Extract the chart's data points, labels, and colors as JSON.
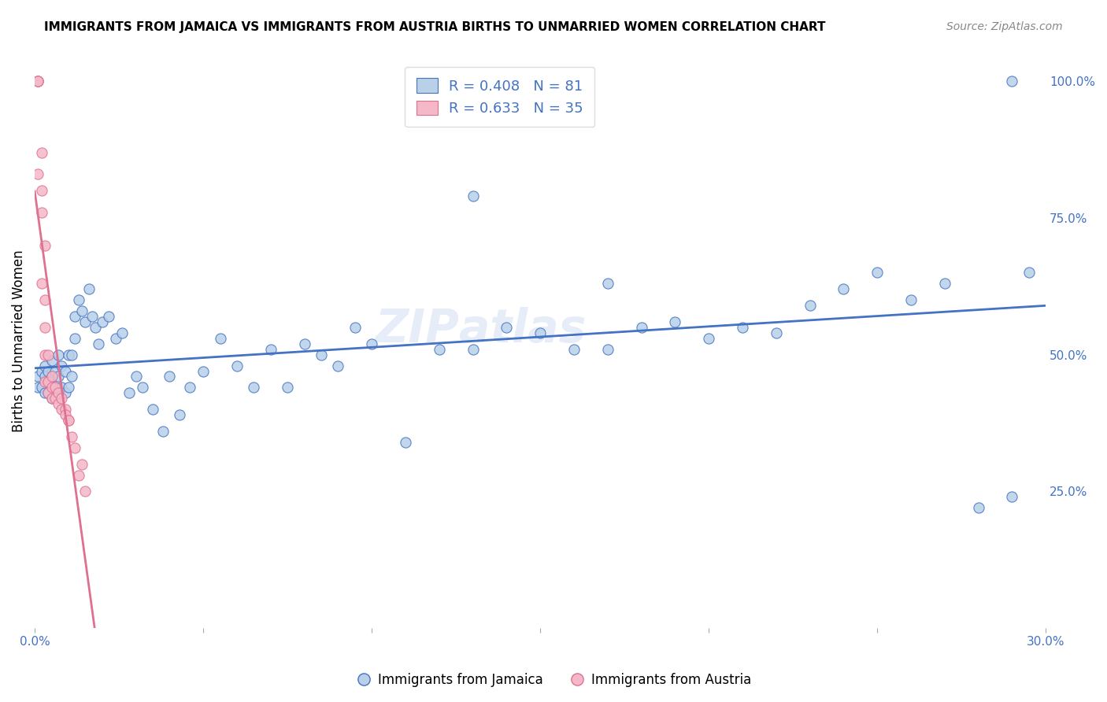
{
  "title": "IMMIGRANTS FROM JAMAICA VS IMMIGRANTS FROM AUSTRIA BIRTHS TO UNMARRIED WOMEN CORRELATION CHART",
  "source": "Source: ZipAtlas.com",
  "ylabel": "Births to Unmarried Women",
  "watermark": "ZIPatlas",
  "xlim": [
    0.0,
    0.3
  ],
  "ylim": [
    0.0,
    1.05
  ],
  "legend_jamaica": "Immigrants from Jamaica",
  "legend_austria": "Immigrants from Austria",
  "R_jamaica": "0.408",
  "N_jamaica": "81",
  "R_austria": "0.633",
  "N_austria": "35",
  "color_jamaica": "#b8d0e8",
  "color_austria": "#f4b8c8",
  "line_color_jamaica": "#4472c4",
  "line_color_austria": "#e07090",
  "jamaica_x": [
    0.001,
    0.001,
    0.002,
    0.002,
    0.003,
    0.003,
    0.003,
    0.004,
    0.004,
    0.004,
    0.005,
    0.005,
    0.005,
    0.006,
    0.006,
    0.007,
    0.007,
    0.007,
    0.008,
    0.008,
    0.009,
    0.009,
    0.01,
    0.01,
    0.011,
    0.011,
    0.012,
    0.012,
    0.013,
    0.014,
    0.015,
    0.016,
    0.017,
    0.018,
    0.019,
    0.02,
    0.022,
    0.024,
    0.026,
    0.028,
    0.03,
    0.032,
    0.035,
    0.038,
    0.04,
    0.043,
    0.046,
    0.05,
    0.055,
    0.06,
    0.065,
    0.07,
    0.075,
    0.08,
    0.085,
    0.09,
    0.095,
    0.1,
    0.11,
    0.12,
    0.13,
    0.14,
    0.15,
    0.16,
    0.17,
    0.18,
    0.19,
    0.2,
    0.21,
    0.22,
    0.23,
    0.24,
    0.25,
    0.26,
    0.27,
    0.28,
    0.29,
    0.295,
    0.13,
    0.17,
    0.29
  ],
  "jamaica_y": [
    0.44,
    0.46,
    0.44,
    0.47,
    0.43,
    0.46,
    0.48,
    0.43,
    0.45,
    0.47,
    0.42,
    0.46,
    0.49,
    0.44,
    0.47,
    0.43,
    0.46,
    0.5,
    0.44,
    0.48,
    0.43,
    0.47,
    0.44,
    0.5,
    0.46,
    0.5,
    0.53,
    0.57,
    0.6,
    0.58,
    0.56,
    0.62,
    0.57,
    0.55,
    0.52,
    0.56,
    0.57,
    0.53,
    0.54,
    0.43,
    0.46,
    0.44,
    0.4,
    0.36,
    0.46,
    0.39,
    0.44,
    0.47,
    0.53,
    0.48,
    0.44,
    0.51,
    0.44,
    0.52,
    0.5,
    0.48,
    0.55,
    0.52,
    0.34,
    0.51,
    0.51,
    0.55,
    0.54,
    0.51,
    0.51,
    0.55,
    0.56,
    0.53,
    0.55,
    0.54,
    0.59,
    0.62,
    0.65,
    0.6,
    0.63,
    0.22,
    0.24,
    0.65,
    0.79,
    0.63,
    1.0
  ],
  "austria_x": [
    0.001,
    0.001,
    0.001,
    0.001,
    0.001,
    0.002,
    0.002,
    0.002,
    0.002,
    0.003,
    0.003,
    0.003,
    0.003,
    0.003,
    0.004,
    0.004,
    0.004,
    0.005,
    0.005,
    0.005,
    0.006,
    0.006,
    0.007,
    0.007,
    0.008,
    0.008,
    0.009,
    0.009,
    0.01,
    0.01,
    0.011,
    0.012,
    0.013,
    0.014,
    0.015
  ],
  "austria_y": [
    1.0,
    1.0,
    1.0,
    1.0,
    0.83,
    0.87,
    0.8,
    0.76,
    0.63,
    0.7,
    0.6,
    0.55,
    0.5,
    0.45,
    0.5,
    0.45,
    0.43,
    0.46,
    0.44,
    0.42,
    0.44,
    0.42,
    0.43,
    0.41,
    0.42,
    0.4,
    0.4,
    0.39,
    0.38,
    0.38,
    0.35,
    0.33,
    0.28,
    0.3,
    0.25
  ]
}
